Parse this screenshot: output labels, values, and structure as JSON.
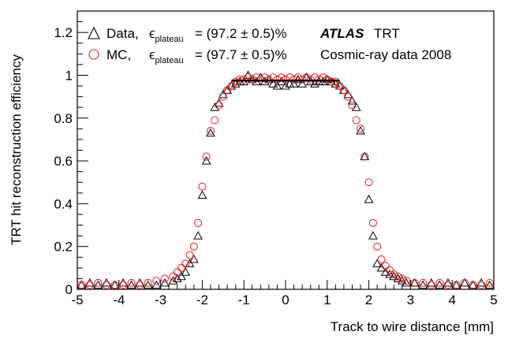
{
  "chart_data": {
    "type": "scatter",
    "xlabel": "Track to wire distance [mm]",
    "ylabel": "TRT hit reconstruction efficiency",
    "xlim": [
      -5,
      5
    ],
    "ylim": [
      0,
      1.3
    ],
    "x_ticks": [
      "-5",
      "-4",
      "-3",
      "-2",
      "-1",
      "0",
      "1",
      "2",
      "3",
      "4",
      "5"
    ],
    "y_ticks": [
      "0",
      "0.2",
      "0.4",
      "0.6",
      "0.8",
      "1",
      "1.2"
    ],
    "grid": false,
    "legend_position": "top-left",
    "annotation": {
      "atlas": "ATLAS",
      "detector": "TRT",
      "dataset": "Cosmic-ray data 2008"
    },
    "series": [
      {
        "legend_label": "Data,",
        "plateau_label": "= (97.2 ± 0.5)%",
        "marker": "triangle",
        "color": "#000000",
        "points": [
          [
            -4.9,
            0.02
          ],
          [
            -4.7,
            0.03
          ],
          [
            -4.5,
            0.02
          ],
          [
            -4.3,
            0.03
          ],
          [
            -4.1,
            0.02
          ],
          [
            -3.9,
            0.03
          ],
          [
            -3.7,
            0.02
          ],
          [
            -3.5,
            0.03
          ],
          [
            -3.3,
            0.02
          ],
          [
            -3.1,
            0.02
          ],
          [
            -2.9,
            0.03
          ],
          [
            -2.7,
            0.04
          ],
          [
            -2.6,
            0.05
          ],
          [
            -2.5,
            0.06
          ],
          [
            -2.4,
            0.08
          ],
          [
            -2.3,
            0.12
          ],
          [
            -2.2,
            0.14
          ],
          [
            -2.1,
            0.25
          ],
          [
            -2.0,
            0.44
          ],
          [
            -1.9,
            0.6
          ],
          [
            -1.8,
            0.73
          ],
          [
            -1.7,
            0.85
          ],
          [
            -1.6,
            0.87
          ],
          [
            -1.5,
            0.91
          ],
          [
            -1.4,
            0.93
          ],
          [
            -1.3,
            0.95
          ],
          [
            -1.2,
            0.96
          ],
          [
            -1.1,
            0.97
          ],
          [
            -1.0,
            0.97
          ],
          [
            -0.9,
            1.0
          ],
          [
            -0.8,
            0.98
          ],
          [
            -0.7,
            0.97
          ],
          [
            -0.6,
            0.99
          ],
          [
            -0.5,
            0.97
          ],
          [
            -0.4,
            0.98
          ],
          [
            -0.3,
            0.96
          ],
          [
            -0.2,
            0.95
          ],
          [
            -0.1,
            0.97
          ],
          [
            0.0,
            0.95
          ],
          [
            0.1,
            0.96
          ],
          [
            0.2,
            0.96
          ],
          [
            0.3,
            0.98
          ],
          [
            0.4,
            0.96
          ],
          [
            0.5,
            0.99
          ],
          [
            0.6,
            0.97
          ],
          [
            0.7,
            0.96
          ],
          [
            0.8,
            0.97
          ],
          [
            0.9,
            0.97
          ],
          [
            1.0,
            0.98
          ],
          [
            1.1,
            0.97
          ],
          [
            1.2,
            0.96
          ],
          [
            1.3,
            0.95
          ],
          [
            1.4,
            0.93
          ],
          [
            1.5,
            0.91
          ],
          [
            1.6,
            0.88
          ],
          [
            1.7,
            0.85
          ],
          [
            1.8,
            0.74
          ],
          [
            1.9,
            0.62
          ],
          [
            2.0,
            0.42
          ],
          [
            2.1,
            0.25
          ],
          [
            2.2,
            0.12
          ],
          [
            2.3,
            0.1
          ],
          [
            2.4,
            0.08
          ],
          [
            2.5,
            0.07
          ],
          [
            2.6,
            0.06
          ],
          [
            2.7,
            0.05
          ],
          [
            2.8,
            0.04
          ],
          [
            2.9,
            0.03
          ],
          [
            3.1,
            0.03
          ],
          [
            3.3,
            0.02
          ],
          [
            3.5,
            0.03
          ],
          [
            3.7,
            0.02
          ],
          [
            3.9,
            0.03
          ],
          [
            4.1,
            0.02
          ],
          [
            4.3,
            0.03
          ],
          [
            4.5,
            0.02
          ],
          [
            4.7,
            0.03
          ],
          [
            4.9,
            0.02
          ]
        ]
      },
      {
        "legend_label": "MC,",
        "plateau_label": "= (97.7 ± 0.5)%",
        "marker": "circle",
        "color": "#e31a1c",
        "points": [
          [
            -4.9,
            0.02
          ],
          [
            -4.7,
            0.02
          ],
          [
            -4.5,
            0.03
          ],
          [
            -4.3,
            0.02
          ],
          [
            -4.1,
            0.02
          ],
          [
            -3.9,
            0.02
          ],
          [
            -3.7,
            0.03
          ],
          [
            -3.5,
            0.02
          ],
          [
            -3.3,
            0.03
          ],
          [
            -3.1,
            0.04
          ],
          [
            -2.9,
            0.05
          ],
          [
            -2.7,
            0.06
          ],
          [
            -2.6,
            0.08
          ],
          [
            -2.5,
            0.1
          ],
          [
            -2.4,
            0.12
          ],
          [
            -2.3,
            0.16
          ],
          [
            -2.2,
            0.2
          ],
          [
            -2.1,
            0.31
          ],
          [
            -2.0,
            0.48
          ],
          [
            -1.9,
            0.62
          ],
          [
            -1.8,
            0.74
          ],
          [
            -1.7,
            0.79
          ],
          [
            -1.6,
            0.86
          ],
          [
            -1.5,
            0.9
          ],
          [
            -1.4,
            0.93
          ],
          [
            -1.3,
            0.95
          ],
          [
            -1.2,
            0.97
          ],
          [
            -1.1,
            0.98
          ],
          [
            -1.0,
            0.98
          ],
          [
            -0.9,
            0.99
          ],
          [
            -0.8,
            0.98
          ],
          [
            -0.7,
            0.99
          ],
          [
            -0.6,
            0.98
          ],
          [
            -0.5,
            0.99
          ],
          [
            -0.4,
            0.98
          ],
          [
            -0.3,
            0.99
          ],
          [
            -0.2,
            0.98
          ],
          [
            -0.1,
            0.99
          ],
          [
            0.0,
            0.98
          ],
          [
            0.1,
            0.99
          ],
          [
            0.2,
            0.98
          ],
          [
            0.3,
            0.99
          ],
          [
            0.4,
            0.98
          ],
          [
            0.5,
            0.99
          ],
          [
            0.6,
            0.98
          ],
          [
            0.7,
            0.99
          ],
          [
            0.8,
            0.98
          ],
          [
            0.9,
            0.99
          ],
          [
            1.0,
            0.98
          ],
          [
            1.1,
            0.97
          ],
          [
            1.2,
            0.97
          ],
          [
            1.3,
            0.95
          ],
          [
            1.4,
            0.93
          ],
          [
            1.5,
            0.9
          ],
          [
            1.6,
            0.86
          ],
          [
            1.7,
            0.79
          ],
          [
            1.8,
            0.75
          ],
          [
            1.9,
            0.62
          ],
          [
            2.0,
            0.5
          ],
          [
            2.1,
            0.31
          ],
          [
            2.2,
            0.2
          ],
          [
            2.3,
            0.14
          ],
          [
            2.4,
            0.11
          ],
          [
            2.5,
            0.09
          ],
          [
            2.6,
            0.07
          ],
          [
            2.7,
            0.06
          ],
          [
            2.8,
            0.05
          ],
          [
            2.9,
            0.04
          ],
          [
            3.1,
            0.03
          ],
          [
            3.3,
            0.03
          ],
          [
            3.5,
            0.02
          ],
          [
            3.7,
            0.03
          ],
          [
            3.9,
            0.02
          ],
          [
            4.1,
            0.02
          ],
          [
            4.3,
            0.03
          ],
          [
            4.5,
            0.02
          ],
          [
            4.7,
            0.02
          ],
          [
            4.9,
            0.03
          ]
        ]
      }
    ],
    "fit_line": {
      "x_range": [
        -1.3,
        1.3
      ],
      "y": 0.975,
      "color": "#000000"
    }
  }
}
